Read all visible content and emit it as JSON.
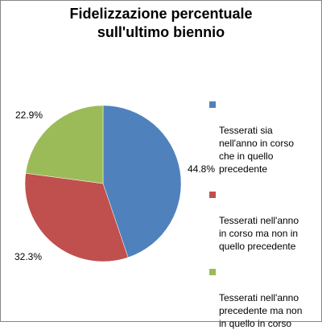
{
  "chart_data": {
    "type": "pie",
    "title_lines": [
      "Fidelizzazione percentuale",
      "sull'ultimo biennio"
    ],
    "slices": [
      {
        "label": "Tesserati sia\nnell'anno in corso\nche in quello\nprecedente",
        "value": 44.8,
        "display": "44.8%",
        "color": "#4F81BD"
      },
      {
        "label": "Tesserati nell'anno\nin corso ma non in\nquello precedente",
        "value": 32.3,
        "display": "32.3%",
        "color": "#C0504D"
      },
      {
        "label": "Tesserati nell'anno\nprecedente ma non\nin quello in corso",
        "value": 22.9,
        "display": "22.9%",
        "color": "#9BBB59"
      }
    ],
    "legend_position": "right"
  }
}
